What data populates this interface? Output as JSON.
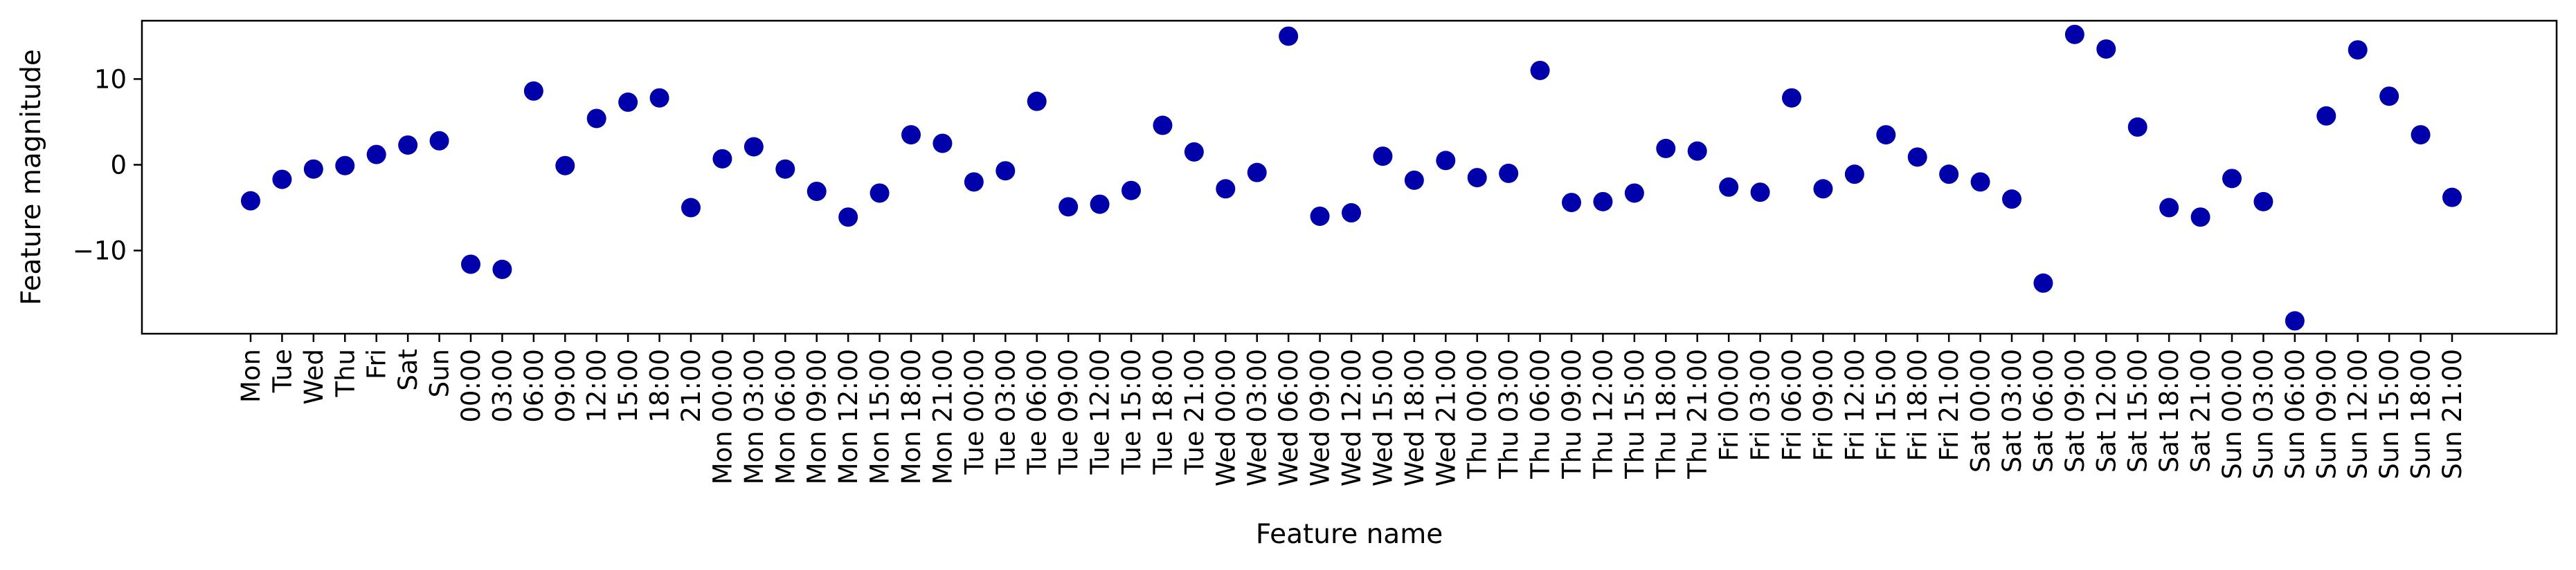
{
  "chart_data": {
    "type": "scatter",
    "title": "",
    "xlabel": "Feature name",
    "ylabel": "Feature magnitude",
    "ylim": [
      -19.7,
      16.8
    ],
    "yticks": [
      -10,
      0,
      10
    ],
    "grid": false,
    "legend": "none",
    "marker_color": "#0000aa",
    "categories": [
      "Mon",
      "Tue",
      "Wed",
      "Thu",
      "Fri",
      "Sat",
      "Sun",
      "00:00",
      "03:00",
      "06:00",
      "09:00",
      "12:00",
      "15:00",
      "18:00",
      "21:00",
      "Mon 00:00",
      "Mon 03:00",
      "Mon 06:00",
      "Mon 09:00",
      "Mon 12:00",
      "Mon 15:00",
      "Mon 18:00",
      "Mon 21:00",
      "Tue 00:00",
      "Tue 03:00",
      "Tue 06:00",
      "Tue 09:00",
      "Tue 12:00",
      "Tue 15:00",
      "Tue 18:00",
      "Tue 21:00",
      "Wed 00:00",
      "Wed 03:00",
      "Wed 06:00",
      "Wed 09:00",
      "Wed 12:00",
      "Wed 15:00",
      "Wed 18:00",
      "Wed 21:00",
      "Thu 00:00",
      "Thu 03:00",
      "Thu 06:00",
      "Thu 09:00",
      "Thu 12:00",
      "Thu 15:00",
      "Thu 18:00",
      "Thu 21:00",
      "Fri 00:00",
      "Fri 03:00",
      "Fri 06:00",
      "Fri 09:00",
      "Fri 12:00",
      "Fri 15:00",
      "Fri 18:00",
      "Fri 21:00",
      "Sat 00:00",
      "Sat 03:00",
      "Sat 06:00",
      "Sat 09:00",
      "Sat 12:00",
      "Sat 15:00",
      "Sat 18:00",
      "Sat 21:00",
      "Sun 00:00",
      "Sun 03:00",
      "Sun 06:00",
      "Sun 09:00",
      "Sun 12:00",
      "Sun 15:00",
      "Sun 18:00",
      "Sun 21:00"
    ],
    "values": [
      -4.2,
      -1.7,
      -0.5,
      -0.1,
      1.2,
      2.3,
      2.8,
      -11.6,
      -12.2,
      8.6,
      -0.1,
      5.4,
      7.3,
      7.8,
      -5.0,
      0.7,
      2.1,
      -0.5,
      -3.1,
      -6.1,
      -3.3,
      3.5,
      2.5,
      -2.0,
      -0.7,
      7.4,
      -4.9,
      -4.6,
      -3.0,
      4.6,
      1.5,
      -2.8,
      -0.9,
      15.0,
      -6.0,
      -5.6,
      1.0,
      -1.8,
      0.5,
      -1.5,
      -1.0,
      11.0,
      -4.4,
      -4.3,
      -3.3,
      1.9,
      1.6,
      -2.6,
      -3.2,
      7.8,
      -2.8,
      -1.1,
      3.5,
      0.9,
      -1.1,
      -2.0,
      -4.0,
      -13.8,
      15.2,
      13.5,
      4.4,
      -5.0,
      -6.1,
      -1.6,
      -4.3,
      -18.2,
      5.7,
      13.4,
      8.0,
      3.5,
      -3.8
    ]
  }
}
